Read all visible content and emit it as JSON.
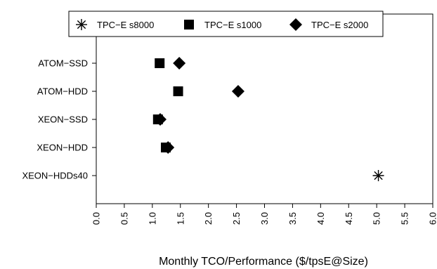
{
  "chart_data": {
    "type": "scatter",
    "orientation": "horizontal",
    "title": "",
    "xlabel": "Monthly TCO/Performance ($/tpsE@Size)",
    "ylabel": "",
    "xlim": [
      0,
      6
    ],
    "x_ticks": [
      "0.0",
      "0.5",
      "1.0",
      "1.5",
      "2.0",
      "2.5",
      "3.0",
      "3.5",
      "4.0",
      "4.5",
      "5.0",
      "5.5",
      "6.0"
    ],
    "categories": [
      "ATOM−SSD",
      "ATOM−HDD",
      "XEON−SSD",
      "XEON−HDD",
      "XEON−HDDs40"
    ],
    "grid": false,
    "legend_position": "top",
    "series": [
      {
        "name": "TPC−E s8000",
        "marker": "asterisk",
        "values": [
          null,
          null,
          null,
          null,
          5.03
        ]
      },
      {
        "name": "TPC−E s1000",
        "marker": "square",
        "values": [
          1.13,
          1.46,
          1.1,
          1.24,
          null
        ]
      },
      {
        "name": "TPC−E s2000",
        "marker": "diamond",
        "values": [
          1.48,
          2.53,
          1.14,
          1.28,
          null
        ]
      }
    ]
  }
}
